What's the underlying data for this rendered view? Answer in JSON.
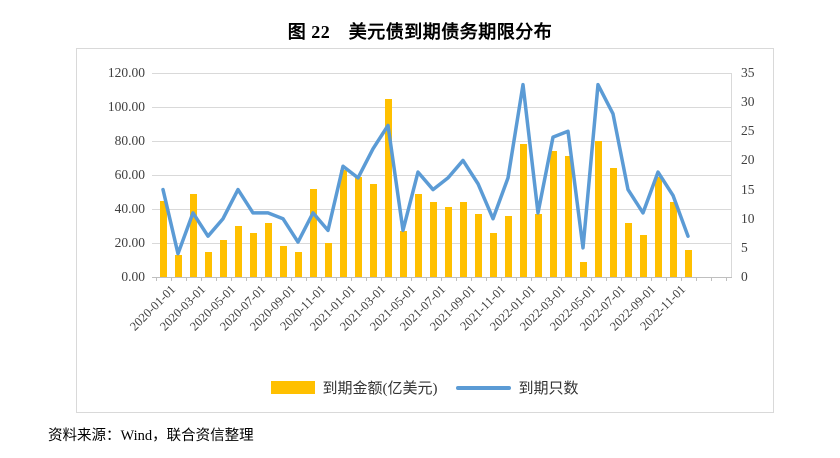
{
  "figure": {
    "title": "图 22　美元债到期债务期限分布",
    "source": "资料来源：Wind，联合资信整理"
  },
  "legend": {
    "amount_label": "到期金额(亿美元)",
    "count_label": "到期只数"
  },
  "colors": {
    "bar": "#FFC000",
    "line": "#5B9BD5",
    "grid": "#D9D9D9",
    "axis_line": "#BFBFBF",
    "axis_text": "#404040",
    "frame": "#D9D9D9"
  },
  "chart_data": {
    "type": "combo",
    "title": "图 22　美元债到期债务期限分布",
    "grid": "horizontal",
    "legend_position": "bottom",
    "categories": [
      "2020-01-01",
      "2020-02-01",
      "2020-03-01",
      "2020-04-01",
      "2020-05-01",
      "2020-06-01",
      "2020-07-01",
      "2020-08-01",
      "2020-09-01",
      "2020-10-01",
      "2020-11-01",
      "2020-12-01",
      "2021-01-01",
      "2021-02-01",
      "2021-03-01",
      "2021-04-01",
      "2021-05-01",
      "2021-06-01",
      "2021-07-01",
      "2021-08-01",
      "2021-09-01",
      "2021-10-01",
      "2021-11-01",
      "2021-12-01",
      "2022-01-01",
      "2022-02-01",
      "2022-03-01",
      "2022-04-01",
      "2022-05-01",
      "2022-06-01",
      "2022-07-01",
      "2022-08-01",
      "2022-09-01",
      "2022-10-01",
      "2022-11-01",
      "2022-12-01"
    ],
    "x_tick_labels": [
      "2020-01-01",
      "2020-03-01",
      "2020-05-01",
      "2020-07-01",
      "2020-09-01",
      "2020-11-01",
      "2021-01-01",
      "2021-03-01",
      "2021-05-01",
      "2021-07-01",
      "2021-09-01",
      "2021-11-01",
      "2022-01-01",
      "2022-03-01",
      "2022-05-01",
      "2022-07-01",
      "2022-09-01",
      "2022-11-01"
    ],
    "series": [
      {
        "name": "到期金额(亿美元)",
        "type": "bar",
        "axis": "left",
        "color": "#FFC000",
        "values": [
          45,
          13,
          49,
          15,
          22,
          30,
          26,
          32,
          18,
          15,
          52,
          20,
          63,
          59,
          55,
          105,
          27,
          49,
          44,
          41,
          44,
          37,
          26,
          36,
          78,
          37,
          74,
          71,
          9,
          80,
          64,
          32,
          25,
          59,
          44,
          16
        ]
      },
      {
        "name": "到期只数",
        "type": "line",
        "axis": "right",
        "color": "#5B9BD5",
        "values": [
          15,
          4,
          11,
          7,
          10,
          15,
          11,
          11,
          10,
          6,
          11,
          8,
          19,
          17,
          22,
          26,
          8,
          18,
          15,
          17,
          20,
          16,
          10,
          17,
          33,
          11,
          24,
          25,
          5,
          33,
          28,
          15,
          11,
          18,
          14,
          7
        ]
      }
    ],
    "left_axis": {
      "min": 0,
      "max": 120,
      "step": 20,
      "tick_labels": [
        "0.00",
        "20.00",
        "40.00",
        "60.00",
        "80.00",
        "100.00",
        "120.00"
      ]
    },
    "right_axis": {
      "min": 0,
      "max": 35,
      "step": 5,
      "tick_labels": [
        "0",
        "5",
        "10",
        "15",
        "20",
        "25",
        "30",
        "35"
      ]
    }
  }
}
